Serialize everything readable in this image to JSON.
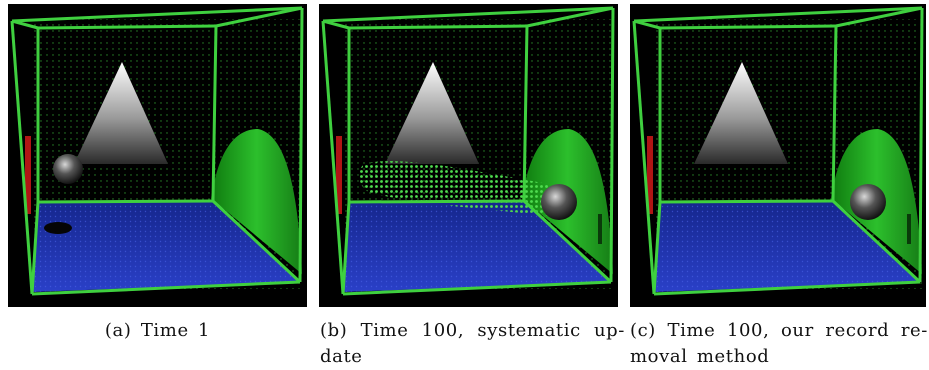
{
  "figure": {
    "panels": [
      {
        "id": "a",
        "caption": "(a)  Time 1",
        "sphere_position": "left wall, upper",
        "shadow_on_floor": true,
        "stream": false
      },
      {
        "id": "b",
        "caption": "(b)  Time 100,  systematic  up- date",
        "sphere_position": "right wall",
        "shadow_on_floor": false,
        "stream": true
      },
      {
        "id": "c",
        "caption": "(c)  Time 100,  our  record  re- moval method",
        "sphere_position": "right wall",
        "shadow_on_floor": false,
        "stream": false
      }
    ],
    "colors": {
      "background": "#000000",
      "edges": "#3fd03f",
      "floor": "#1c2fa8",
      "right_wall_surface": "#1fa31f",
      "left_wall_strip": "#b01515",
      "cone": "#ffffff"
    }
  }
}
